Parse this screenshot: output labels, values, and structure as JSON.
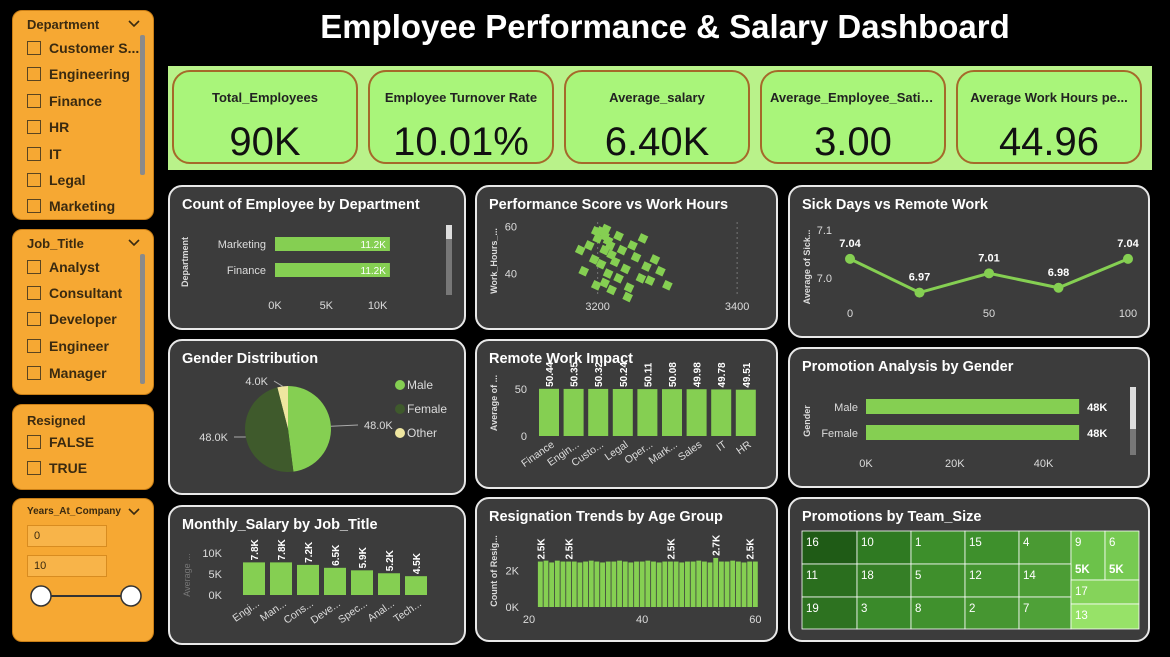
{
  "title": "Employee Performance & Salary Dashboard",
  "colors": {
    "accent": "#85cf52",
    "kpi_bg": "#a9f57a",
    "slicer_bg": "#f6a833",
    "card_bg": "#3c3c3c"
  },
  "slicers": {
    "department": {
      "title": "Department",
      "items": [
        "Customer S...",
        "Engineering",
        "Finance",
        "HR",
        "IT",
        "Legal",
        "Marketing"
      ]
    },
    "job_title": {
      "title": "Job_Title",
      "items": [
        "Analyst",
        "Consultant",
        "Developer",
        "Engineer",
        "Manager"
      ]
    },
    "resigned": {
      "title": "Resigned",
      "items": [
        "FALSE",
        "TRUE"
      ]
    },
    "years": {
      "title": "Years_At_Company",
      "min": "0",
      "max": "10"
    }
  },
  "kpis": [
    {
      "label": "Total_Employees",
      "value": "90K"
    },
    {
      "label": "Employee Turnover Rate",
      "value": "10.01%"
    },
    {
      "label": "Average_salary",
      "value": "6.40K"
    },
    {
      "label": "Average_Employee_Satis...",
      "value": "3.00"
    },
    {
      "label": "Average Work Hours pe...",
      "value": "44.96"
    }
  ],
  "chart_data": [
    {
      "id": "dept",
      "type": "bar",
      "orientation": "horizontal",
      "title": "Count of Employee by Department",
      "ylabel": "Department",
      "categories": [
        "Marketing",
        "Finance"
      ],
      "values": [
        11200,
        11200
      ],
      "data_labels": [
        "11.2K",
        "11.2K"
      ],
      "xticks": [
        "0K",
        "5K",
        "10K"
      ],
      "xlim": [
        0,
        11500
      ]
    },
    {
      "id": "perf",
      "type": "scatter",
      "title": "Performance Score vs Work Hours",
      "ylabel": "Work_Hours_...",
      "xticks": [
        "3200",
        "3400"
      ],
      "yticks": [
        "40",
        "60"
      ],
      "xlim": [
        3070,
        3450
      ],
      "ylim": [
        30,
        62
      ],
      "points": [
        [
          3175,
          50
        ],
        [
          3180,
          41
        ],
        [
          3188,
          52
        ],
        [
          3195,
          46
        ],
        [
          3205,
          58
        ],
        [
          3210,
          56
        ],
        [
          3215,
          54
        ],
        [
          3200,
          55
        ],
        [
          3210,
          50
        ],
        [
          3220,
          48
        ],
        [
          3205,
          44
        ],
        [
          3215,
          40
        ],
        [
          3225,
          45
        ],
        [
          3210,
          36
        ],
        [
          3220,
          33
        ],
        [
          3230,
          38
        ],
        [
          3240,
          42
        ],
        [
          3245,
          34
        ],
        [
          3250,
          52
        ],
        [
          3255,
          47
        ],
        [
          3262,
          38
        ],
        [
          3270,
          43
        ],
        [
          3275,
          37
        ],
        [
          3282,
          46
        ],
        [
          3290,
          41
        ],
        [
          3300,
          35
        ],
        [
          3198,
          35
        ],
        [
          3230,
          56
        ],
        [
          3235,
          50
        ],
        [
          3212,
          59
        ],
        [
          3243,
          30
        ],
        [
          3265,
          55
        ],
        [
          3198,
          58
        ],
        [
          3218,
          52
        ]
      ]
    },
    {
      "id": "sick",
      "type": "line",
      "title": "Sick Days vs Remote Work",
      "ylabel": "Average of Sick...",
      "x": [
        0,
        25,
        50,
        75,
        100
      ],
      "values": [
        7.04,
        6.97,
        7.01,
        6.98,
        7.04
      ],
      "data_labels": [
        "7.04",
        "6.97",
        "7.01",
        "6.98",
        "7.04"
      ],
      "xticks": [
        "0",
        "50",
        "100"
      ],
      "yticks": [
        "7.0",
        "7.1"
      ],
      "ylim": [
        6.94,
        7.1
      ]
    },
    {
      "id": "gender",
      "type": "pie",
      "title": "Gender Distribution",
      "categories": [
        "Male",
        "Female",
        "Other"
      ],
      "values": [
        48000,
        48000,
        4000
      ],
      "data_labels": [
        "48.0K",
        "48.0K",
        "4.0K"
      ],
      "colors": [
        "#85cf52",
        "#3f5a2c",
        "#efe6a0"
      ]
    },
    {
      "id": "remote",
      "type": "bar",
      "title": "Remote Work Impact",
      "ylabel": "Average of ...",
      "categories": [
        "Finance",
        "Engin...",
        "Custo...",
        "Legal",
        "Oper...",
        "Mark...",
        "Sales",
        "IT",
        "HR"
      ],
      "values": [
        50.44,
        50.35,
        50.32,
        50.24,
        50.11,
        50.08,
        49.98,
        49.78,
        49.51
      ],
      "data_labels": [
        "50.44",
        "50.35",
        "50.32",
        "50.24",
        "50.11",
        "50.08",
        "49.98",
        "49.78",
        "49.51"
      ],
      "yticks": [
        "0",
        "50"
      ],
      "ylim": [
        0,
        62
      ]
    },
    {
      "id": "promo",
      "type": "bar",
      "orientation": "horizontal",
      "title": "Promotion Analysis by Gender",
      "ylabel": "Gender",
      "categories": [
        "Male",
        "Female"
      ],
      "values": [
        48000,
        48000
      ],
      "data_labels": [
        "48K",
        "48K"
      ],
      "xticks": [
        "0K",
        "20K",
        "40K"
      ],
      "xlim": [
        0,
        50000
      ]
    },
    {
      "id": "salary",
      "type": "bar",
      "title": "Monthly_Salary by Job_Title",
      "ylabel": "Average ...",
      "categories": [
        "Engi...",
        "Man...",
        "Cons...",
        "Deve...",
        "Spec...",
        "Anal...",
        "Tech..."
      ],
      "values": [
        7800,
        7800,
        7200,
        6500,
        5900,
        5200,
        4500
      ],
      "data_labels": [
        "7.8K",
        "7.8K",
        "7.2K",
        "6.5K",
        "5.9K",
        "5.2K",
        "4.5K"
      ],
      "yticks": [
        "0K",
        "5K",
        "10K"
      ],
      "ylim": [
        0,
        11000
      ]
    },
    {
      "id": "resign",
      "type": "bar",
      "title": "Resignation Trends by Age Group",
      "ylabel": "Count of Resig...",
      "x": [
        22,
        23,
        24,
        25,
        26,
        27,
        28,
        29,
        30,
        31,
        32,
        33,
        34,
        35,
        36,
        37,
        38,
        39,
        40,
        41,
        42,
        43,
        44,
        45,
        46,
        47,
        48,
        49,
        50,
        51,
        52,
        53,
        54,
        55,
        56,
        57,
        58,
        59,
        60
      ],
      "values": [
        2500,
        2550,
        2450,
        2550,
        2500,
        2500,
        2500,
        2450,
        2500,
        2550,
        2500,
        2450,
        2500,
        2500,
        2550,
        2500,
        2450,
        2500,
        2500,
        2550,
        2500,
        2450,
        2500,
        2500,
        2500,
        2450,
        2500,
        2500,
        2550,
        2500,
        2450,
        2700,
        2500,
        2500,
        2550,
        2500,
        2450,
        2500,
        2500
      ],
      "annotated": [
        {
          "x": 22,
          "label": "2.5K"
        },
        {
          "x": 27,
          "label": "2.5K"
        },
        {
          "x": 45,
          "label": "2.5K"
        },
        {
          "x": 53,
          "label": "2.7K"
        },
        {
          "x": 59,
          "label": "2.5K"
        }
      ],
      "xticks": [
        "20",
        "40",
        "60"
      ],
      "yticks": [
        "0K",
        "2K"
      ],
      "xlim": [
        20,
        61
      ],
      "ylim": [
        0,
        3300
      ]
    },
    {
      "id": "team",
      "type": "heatmap",
      "title": "Promotions by Team_Size",
      "categories": [
        "16",
        "10",
        "1",
        "15",
        "4",
        "9",
        "6",
        "11",
        "18",
        "5",
        "12",
        "14",
        "19",
        "3",
        "8",
        "2",
        "7",
        "17",
        "13"
      ],
      "data_labels": [
        "",
        "",
        "",
        "",
        "",
        "5K",
        "5K",
        "",
        "",
        "",
        "",
        "",
        "",
        "",
        "",
        "",
        "",
        "",
        ""
      ]
    }
  ]
}
